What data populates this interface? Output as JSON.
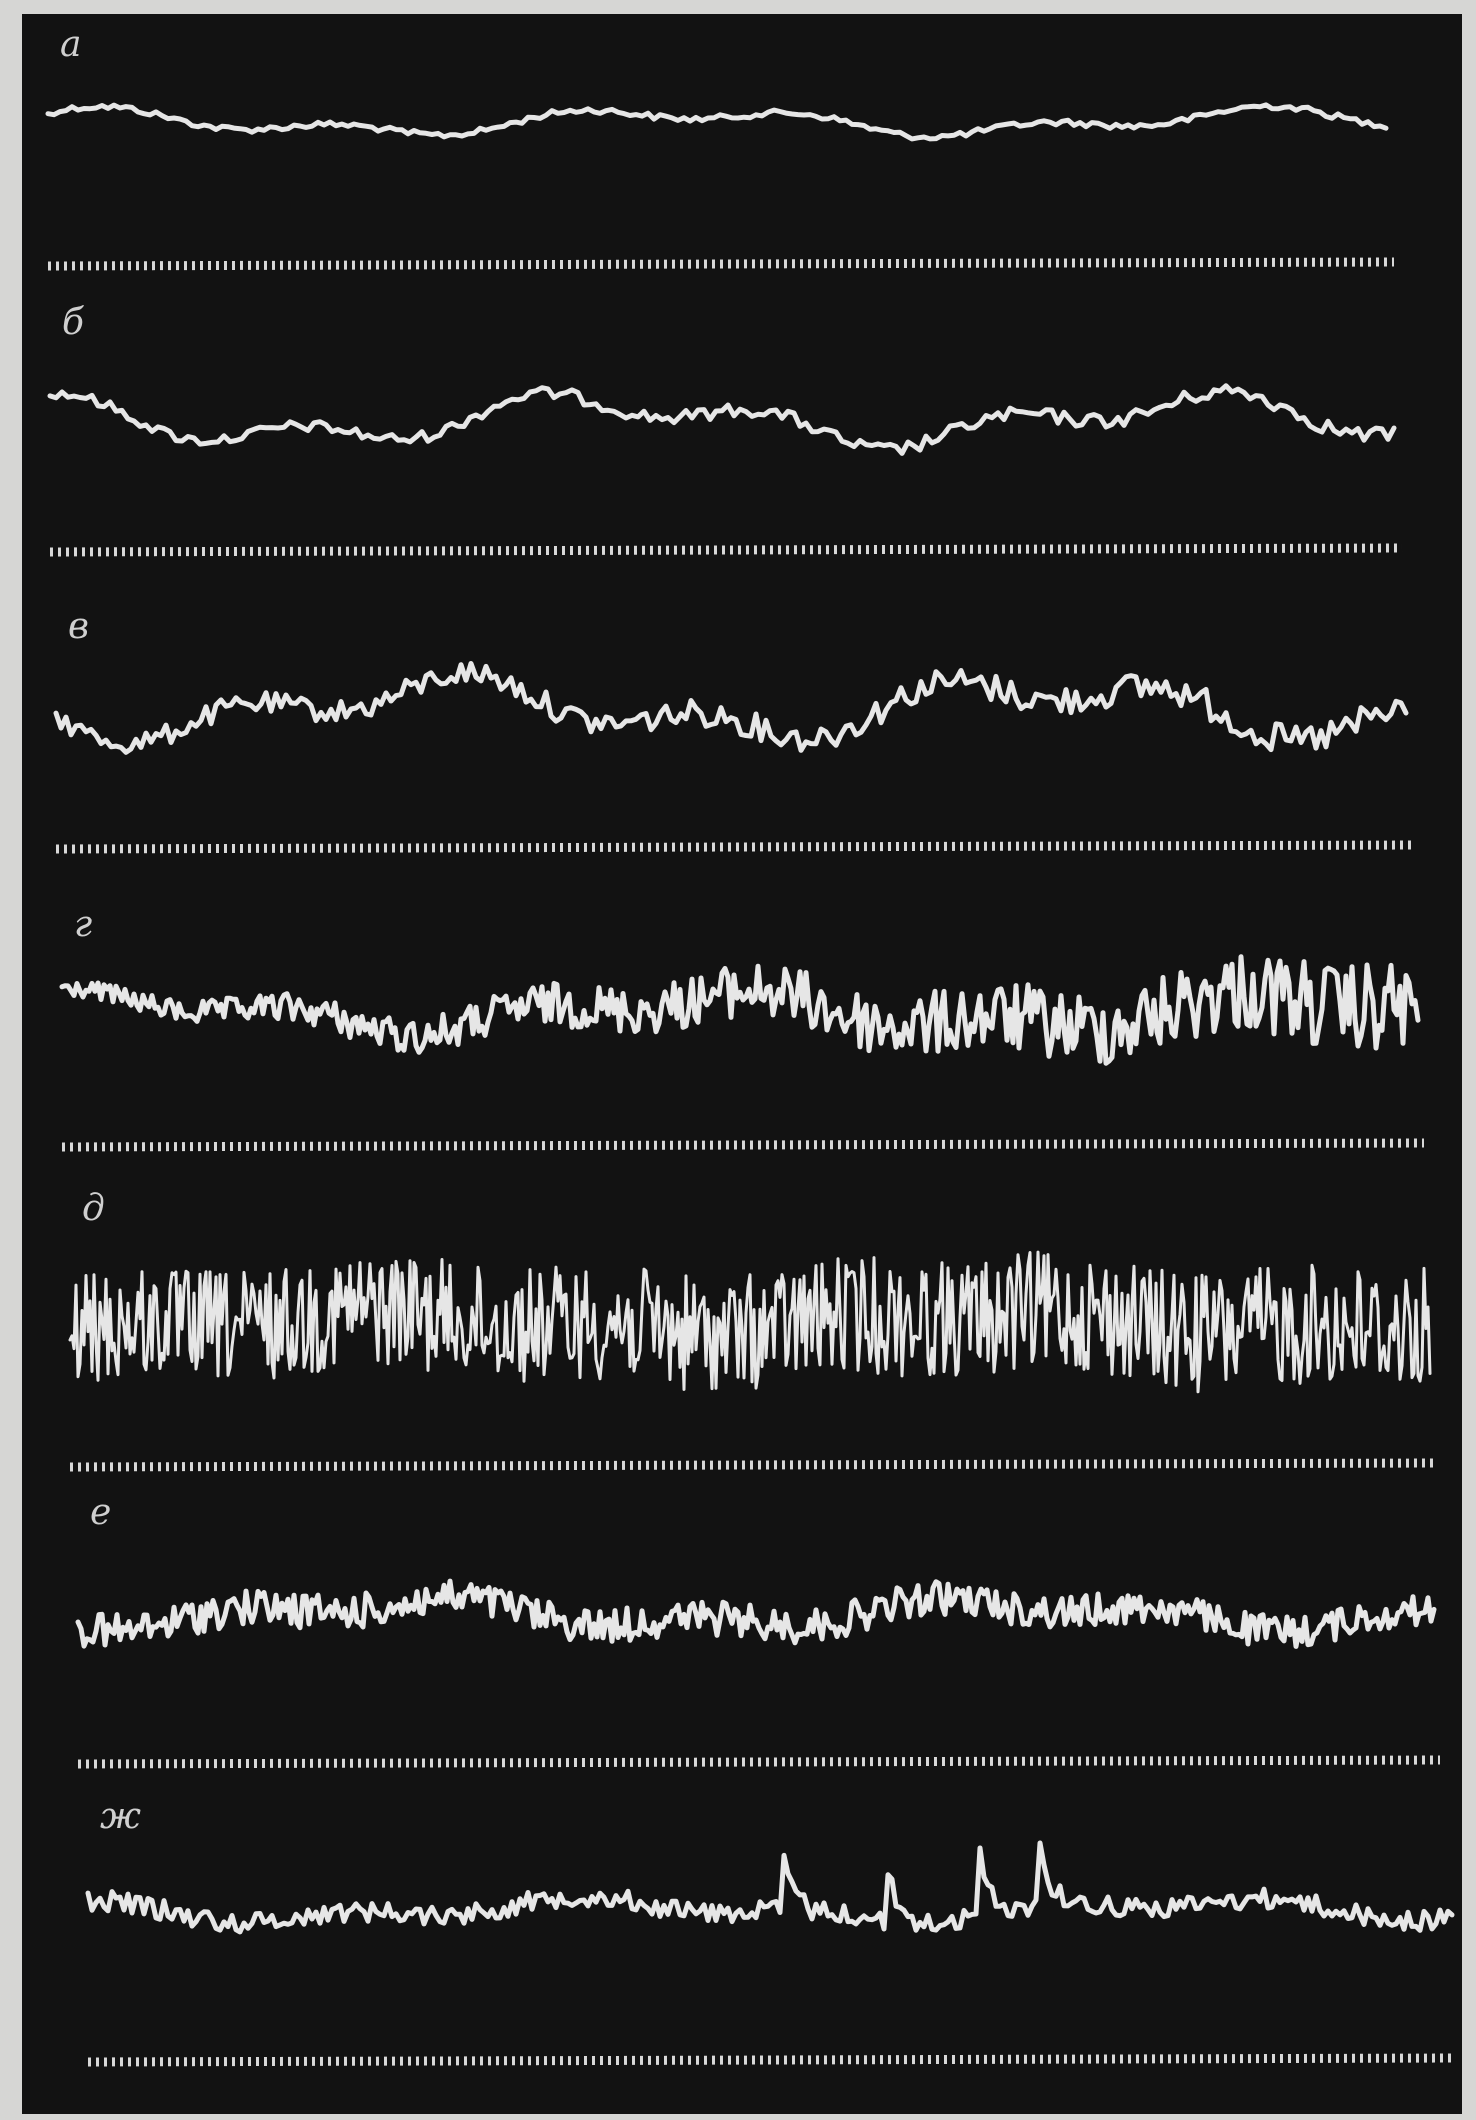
{
  "labels": [
    "а",
    "б",
    "в",
    "г",
    "д",
    "е",
    "ж"
  ]
}
